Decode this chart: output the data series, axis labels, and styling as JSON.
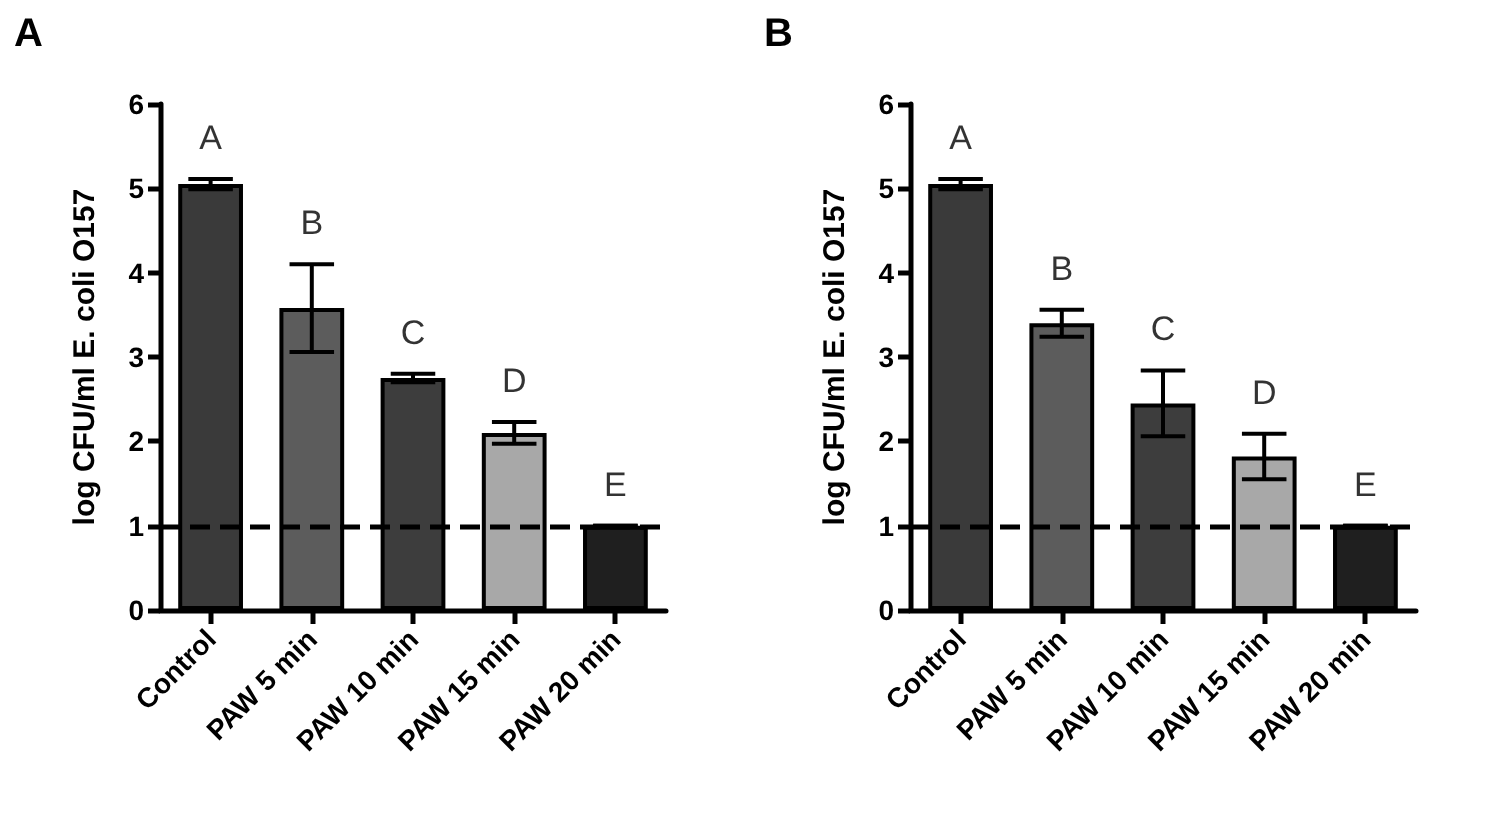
{
  "chart_data": [
    {
      "type": "bar",
      "title": "A",
      "ylabel": "log CFU/ml E. coli O157",
      "categories": [
        "Control",
        "PAW 5 min",
        "PAW 10 min",
        "PAW 15 min",
        "PAW 20 min"
      ],
      "values": [
        5.05,
        3.58,
        2.75,
        2.1,
        1.0
      ],
      "errors": [
        0.06,
        0.52,
        0.05,
        0.13,
        0
      ],
      "colors": [
        "#3a3a3a",
        "#5c5c5c",
        "#3d3d3d",
        "#a8a8a8",
        "#1f1f1f"
      ],
      "ylim": [
        0,
        6
      ],
      "yticks": [
        0,
        1,
        2,
        3,
        4,
        5,
        6
      ],
      "grid": false,
      "ref_lines": [
        {
          "axis": "y",
          "value": 1,
          "color": "#000000",
          "line_style": "dashed"
        }
      ],
      "annotations": [
        "A",
        "B",
        "C",
        "D",
        "E"
      ]
    },
    {
      "type": "bar",
      "title": "B",
      "ylabel": "log CFU/ml E. coli O157",
      "categories": [
        "Control",
        "PAW 5 min",
        "PAW 10 min",
        "PAW 15 min",
        "PAW 20 min"
      ],
      "values": [
        5.05,
        3.4,
        2.45,
        1.82,
        1.0
      ],
      "errors": [
        0.06,
        0.16,
        0.39,
        0.27,
        0
      ],
      "colors": [
        "#3a3a3a",
        "#5c5c5c",
        "#3d3d3d",
        "#a8a8a8",
        "#1f1f1f"
      ],
      "ylim": [
        0,
        6
      ],
      "yticks": [
        0,
        1,
        2,
        3,
        4,
        5,
        6
      ],
      "grid": false,
      "ref_lines": [
        {
          "axis": "y",
          "value": 1,
          "color": "#000000",
          "line_style": "dashed"
        }
      ],
      "annotations": [
        "A",
        "B",
        "C",
        "D",
        "E"
      ]
    }
  ]
}
